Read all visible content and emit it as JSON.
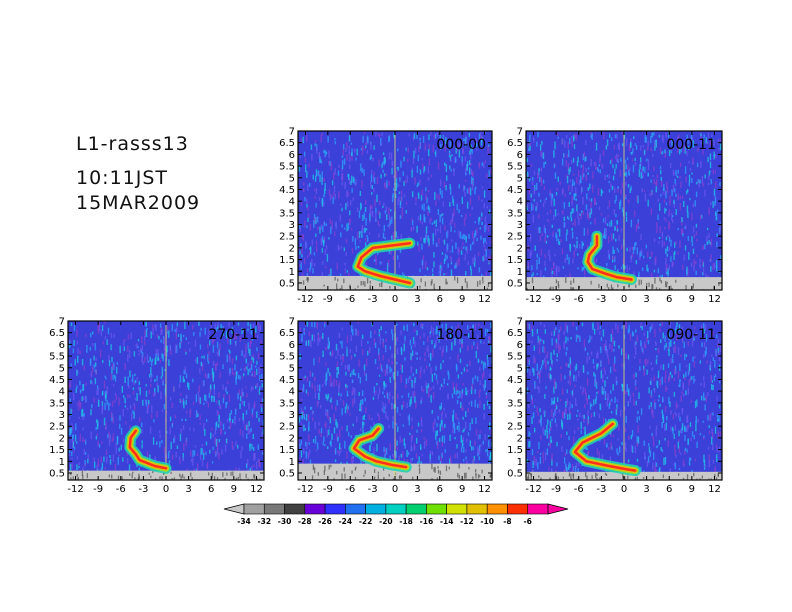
{
  "header": {
    "station": "L1-rasss13",
    "time": "10:11JST",
    "date": "15MAR2009"
  },
  "colors": {
    "background_spectrum": "#3a40d8",
    "noise_speckle": [
      "#20c8e8",
      "#6a58f0",
      "#8a40d0",
      "#30a0ff"
    ],
    "ground_clutter": "#c8c8c8",
    "zero_line": "#e0e070"
  },
  "chart_data": {
    "type": "heatmap",
    "x_ticks": [
      "-12",
      "-9",
      "-6",
      "-3",
      "0",
      "3",
      "6",
      "9",
      "12"
    ],
    "y_ticks": [
      "0.5",
      "1",
      "1.5",
      "2",
      "2.5",
      "3",
      "3.5",
      "4",
      "4.5",
      "5",
      "5.5",
      "6",
      "6.5",
      "7"
    ],
    "xlim": [
      -13,
      13
    ],
    "ylim": [
      0.2,
      7
    ],
    "panels": [
      {
        "label": "000-00",
        "clutter_top": 0.8,
        "curve": [
          [
            2.2,
            2.0
          ],
          [
            2.0,
            -3.0
          ],
          [
            1.6,
            -4.5
          ],
          [
            1.2,
            -5.0
          ],
          [
            1.0,
            -4.0
          ],
          [
            0.8,
            -2.0
          ],
          [
            0.65,
            0.0
          ],
          [
            0.5,
            2.0
          ]
        ]
      },
      {
        "label": "000-11",
        "clutter_top": 0.75,
        "curve": [
          [
            2.5,
            -3.6
          ],
          [
            2.1,
            -3.6
          ],
          [
            1.7,
            -4.6
          ],
          [
            1.4,
            -4.8
          ],
          [
            1.1,
            -4.2
          ],
          [
            0.9,
            -2.5
          ],
          [
            0.75,
            -1.0
          ],
          [
            0.65,
            1.0
          ]
        ]
      },
      {
        "label": "270-11",
        "clutter_top": 0.6,
        "curve": [
          [
            2.3,
            -4.0
          ],
          [
            2.0,
            -4.7
          ],
          [
            1.6,
            -4.8
          ],
          [
            1.3,
            -4.0
          ],
          [
            1.05,
            -3.5
          ],
          [
            0.8,
            -1.5
          ],
          [
            0.7,
            0.0
          ]
        ]
      },
      {
        "label": "180-11",
        "clutter_top": 0.9,
        "curve": [
          [
            2.4,
            -2.2
          ],
          [
            2.1,
            -3.0
          ],
          [
            1.9,
            -4.8
          ],
          [
            1.55,
            -5.5
          ],
          [
            1.2,
            -4.0
          ],
          [
            1.0,
            -2.5
          ],
          [
            0.85,
            -0.5
          ],
          [
            0.75,
            1.5
          ]
        ]
      },
      {
        "label": "090-11",
        "clutter_top": 0.55,
        "curve": [
          [
            2.6,
            -1.5
          ],
          [
            2.2,
            -3.0
          ],
          [
            1.8,
            -5.5
          ],
          [
            1.4,
            -6.5
          ],
          [
            1.0,
            -5.0
          ],
          [
            0.8,
            -2.0
          ],
          [
            0.65,
            0.5
          ],
          [
            0.6,
            1.5
          ]
        ]
      }
    ],
    "colorbar": {
      "labels": [
        "-34",
        "-32",
        "-30",
        "-28",
        "-26",
        "-24",
        "-22",
        "-20",
        "-18",
        "-16",
        "-14",
        "-12",
        "-10",
        "-8",
        "-6"
      ],
      "colors": [
        "#a0a0a0",
        "#787878",
        "#404040",
        "#6a00d8",
        "#3030ff",
        "#2070f0",
        "#00b0e0",
        "#00d0c0",
        "#00d070",
        "#70e000",
        "#d0e000",
        "#e0c000",
        "#ff9000",
        "#ff3000",
        "#ff00a0"
      ]
    }
  }
}
